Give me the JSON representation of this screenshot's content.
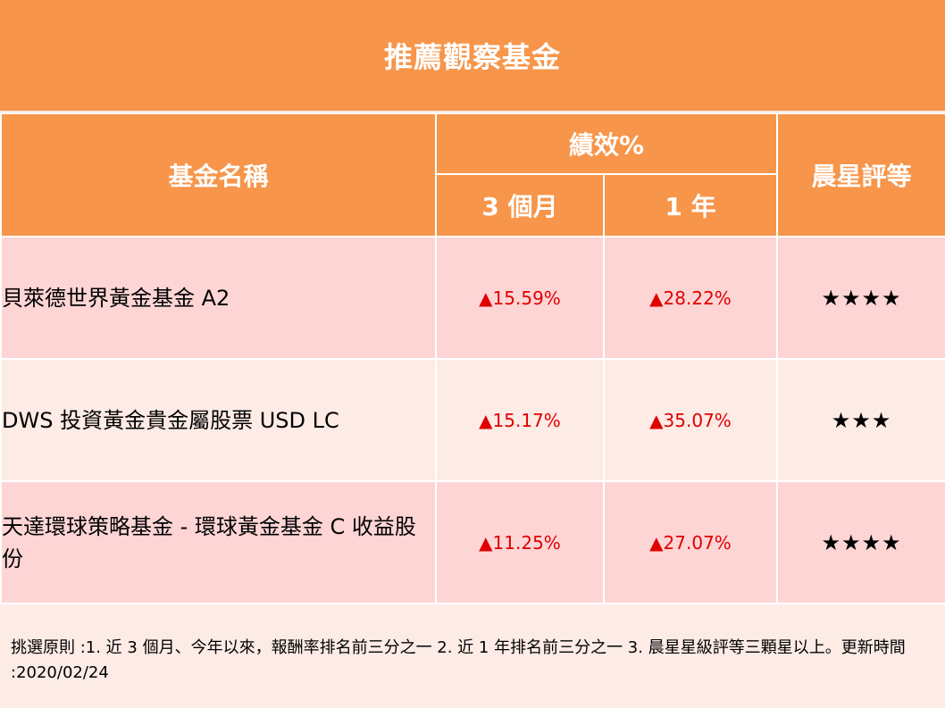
{
  "title": "推薦觀察基金",
  "headers": {
    "fund_name": "基金名稱",
    "performance": "績效%",
    "three_month": "3 個月",
    "one_year": "1 年",
    "morningstar": "晨星評等"
  },
  "funds": [
    {
      "name": "貝萊德世界黃金基金  A2",
      "three_month": "▲15.59%",
      "one_year": "▲28.22%",
      "rating_stars": "★★★★"
    },
    {
      "name": "DWS  投資黃金貴金屬股票  USD LC",
      "three_month": "▲15.17%",
      "one_year": "▲35.07%",
      "rating_stars": "★★★"
    },
    {
      "name": "天達環球策略基金  -  環球黃金基金  C 收益股份",
      "three_month": "▲11.25%",
      "one_year": "▲27.07%",
      "rating_stars": "★★★★"
    }
  ],
  "footnote": "挑選原則 :1. 近 3 個月、今年以來，報酬率排名前三分之一 2. 近 1 年排名前三分之一 3. 晨星星級評等三顆星以上。更新時間 :2020/02/24",
  "colors": {
    "header_orange": "#f7954a",
    "row_pink": "#fed5d5",
    "row_light": "#fdebe6",
    "performance_red": "#e00000"
  }
}
